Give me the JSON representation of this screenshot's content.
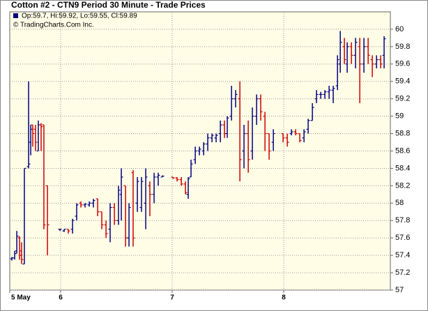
{
  "chart_data": {
    "type": "ohlc",
    "title": "Cotton #2 - CTN9 Period 30 Minute - Trade Prices",
    "legend_text": "Op:59.7, Hi:59.92, Lo:59.55, Cl:59.89",
    "copyright": "© TradingCharts.Com Inc.",
    "up_color": "#000080",
    "down_color": "#cc0000",
    "legend_color": "#000080",
    "grid": true,
    "xlim": [
      5.544,
      8.956
    ],
    "xticks": [
      {
        "value": 5.544,
        "label": "5 May"
      },
      6,
      7,
      8
    ],
    "ylim": [
      57,
      60.2
    ],
    "yticks": [
      57,
      57.2,
      57.4,
      57.6,
      57.8,
      58,
      58.2,
      58.4,
      58.6,
      58.8,
      59,
      59.2,
      59.4,
      59.6,
      59.8,
      60
    ],
    "x": [
      5.563,
      5.588,
      5.607,
      5.632,
      5.65,
      5.675,
      5.713,
      5.732,
      5.75,
      5.775,
      5.8,
      5.825,
      5.85,
      5.882,
      5.994,
      6.032,
      6.069,
      6.107,
      6.144,
      6.182,
      6.219,
      6.257,
      6.294,
      6.332,
      6.369,
      6.407,
      6.444,
      6.482,
      6.519,
      6.544,
      6.582,
      6.613,
      6.65,
      6.688,
      6.725,
      6.763,
      6.8,
      6.838,
      6.875,
      6.913,
      7.007,
      7.044,
      7.082,
      7.119,
      7.144,
      7.169,
      7.207,
      7.244,
      7.282,
      7.319,
      7.357,
      7.394,
      7.432,
      7.469,
      7.494,
      7.532,
      7.569,
      7.607,
      7.644,
      7.682,
      7.719,
      7.757,
      7.794,
      7.832,
      7.869,
      7.907,
      7.994,
      8.032,
      8.069,
      8.107,
      8.144,
      8.182,
      8.219,
      8.257,
      8.294,
      8.332,
      8.369,
      8.407,
      8.444,
      8.482,
      8.507,
      8.544,
      8.569,
      8.607,
      8.644,
      8.682,
      8.719,
      8.757,
      8.794,
      8.832,
      8.869,
      8.9
    ],
    "open": [
      57.36,
      57.37,
      57.45,
      57.6,
      57.4,
      57.3,
      58.42,
      58.7,
      58.9,
      58.85,
      58.6,
      58.9,
      58.9,
      58.2,
      57.7,
      57.68,
      57.7,
      57.7,
      57.85,
      58.0,
      57.98,
      57.98,
      58.0,
      58.05,
      57.9,
      57.75,
      57.7,
      57.95,
      57.8,
      58.1,
      58.2,
      57.6,
      58.35,
      58.0,
      57.95,
      58.0,
      58.2,
      58.1,
      58.3,
      58.3,
      58.3,
      58.29,
      58.27,
      58.22,
      58.1,
      58.3,
      58.5,
      58.6,
      58.6,
      58.68,
      58.75,
      58.75,
      58.8,
      58.9,
      58.8,
      59.0,
      59.2,
      59.2,
      58.6,
      58.8,
      58.6,
      59.0,
      59.2,
      59.0,
      58.8,
      58.7,
      58.8,
      58.75,
      58.8,
      58.82,
      58.8,
      58.75,
      58.85,
      58.95,
      59.2,
      59.25,
      59.25,
      59.28,
      59.3,
      59.35,
      59.6,
      59.8,
      59.6,
      59.8,
      59.7,
      59.8,
      59.6,
      59.8,
      59.65,
      59.6,
      59.65,
      59.7
    ],
    "high": [
      57.38,
      57.45,
      57.68,
      57.62,
      57.55,
      58.4,
      59.4,
      58.9,
      58.9,
      58.9,
      58.95,
      58.92,
      58.9,
      58.2,
      57.7,
      57.7,
      57.7,
      57.82,
      58.0,
      58.02,
      58.0,
      58.02,
      58.05,
      58.05,
      57.9,
      57.8,
      58.0,
      58.0,
      58.2,
      58.4,
      58.2,
      58.0,
      58.38,
      58.3,
      58.3,
      58.4,
      58.25,
      58.35,
      58.35,
      58.32,
      58.3,
      58.3,
      58.3,
      58.25,
      58.3,
      58.5,
      58.65,
      58.65,
      58.7,
      58.8,
      58.8,
      58.8,
      58.95,
      58.95,
      59.0,
      59.35,
      59.3,
      59.4,
      58.9,
      58.95,
      59.1,
      59.25,
      59.25,
      59.05,
      58.8,
      58.85,
      58.8,
      58.8,
      58.85,
      58.85,
      58.8,
      58.85,
      58.97,
      59.15,
      59.3,
      59.28,
      59.3,
      59.35,
      59.35,
      59.7,
      59.98,
      59.9,
      59.85,
      59.85,
      59.9,
      59.9,
      59.9,
      59.9,
      59.7,
      59.7,
      59.7,
      59.92
    ],
    "low": [
      57.34,
      57.35,
      57.42,
      57.35,
      57.3,
      57.3,
      58.4,
      58.55,
      58.65,
      58.6,
      58.6,
      58.6,
      57.7,
      57.4,
      57.68,
      57.67,
      57.65,
      57.65,
      57.8,
      57.95,
      57.95,
      57.96,
      57.95,
      57.85,
      57.7,
      57.6,
      57.55,
      57.75,
      57.75,
      57.8,
      57.5,
      57.5,
      57.5,
      57.9,
      57.9,
      57.7,
      57.85,
      58.0,
      58.2,
      58.3,
      58.28,
      58.25,
      58.2,
      58.1,
      58.05,
      58.3,
      58.45,
      58.55,
      58.55,
      58.6,
      58.7,
      58.7,
      58.7,
      58.75,
      58.75,
      58.95,
      59.1,
      58.25,
      58.4,
      58.35,
      58.5,
      58.9,
      58.95,
      58.6,
      58.5,
      58.6,
      58.7,
      58.65,
      58.78,
      58.78,
      58.7,
      58.7,
      58.8,
      58.95,
      59.15,
      59.2,
      59.2,
      59.2,
      59.15,
      59.3,
      59.5,
      59.6,
      59.5,
      59.6,
      59.55,
      59.15,
      59.5,
      59.6,
      59.45,
      59.55,
      59.55,
      59.55
    ],
    "close": [
      57.37,
      57.42,
      57.62,
      57.45,
      57.35,
      58.4,
      58.45,
      58.85,
      58.8,
      58.7,
      58.9,
      58.88,
      57.75,
      57.75,
      57.7,
      57.7,
      57.68,
      57.8,
      57.98,
      57.98,
      57.99,
      58.0,
      58.03,
      57.9,
      57.75,
      57.65,
      57.95,
      57.8,
      58.15,
      58.3,
      57.6,
      57.95,
      57.6,
      58.25,
      58.25,
      58.3,
      58.1,
      58.3,
      58.32,
      58.31,
      58.29,
      58.27,
      58.22,
      58.12,
      58.28,
      58.45,
      58.6,
      58.62,
      58.68,
      58.75,
      58.78,
      58.78,
      58.9,
      58.8,
      58.98,
      59.2,
      59.25,
      58.5,
      58.8,
      58.5,
      59.0,
      59.2,
      59.05,
      58.8,
      58.6,
      58.8,
      58.75,
      58.7,
      58.82,
      58.8,
      58.72,
      58.82,
      58.95,
      59.1,
      59.25,
      59.25,
      59.28,
      59.3,
      59.32,
      59.65,
      59.85,
      59.65,
      59.8,
      59.7,
      59.85,
      59.6,
      59.8,
      59.7,
      59.6,
      59.65,
      59.6,
      59.89
    ]
  }
}
